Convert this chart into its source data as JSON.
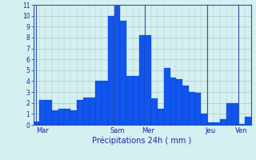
{
  "values": [
    0.3,
    2.3,
    2.3,
    1.3,
    1.5,
    1.5,
    1.3,
    2.3,
    2.5,
    2.5,
    4.0,
    4.0,
    10.0,
    11.0,
    9.5,
    4.5,
    4.5,
    8.2,
    8.2,
    2.4,
    1.5,
    5.2,
    4.3,
    4.2,
    3.6,
    3.0,
    2.9,
    1.0,
    0.2,
    0.2,
    0.5,
    2.0,
    2.0,
    0.1,
    0.7
  ],
  "bar_color": "#1155ee",
  "bar_edge_color": "#0033bb",
  "background_color": "#d4f0f0",
  "grid_color": "#b0c8c8",
  "text_color": "#2222aa",
  "xlabel": "Précipitations 24h ( mm )",
  "ylim": [
    0,
    11
  ],
  "yticks": [
    0,
    1,
    2,
    3,
    4,
    5,
    6,
    7,
    8,
    9,
    10,
    11
  ],
  "day_labels": [
    "Mar",
    "Sam",
    "Mer",
    "Jeu",
    "Ven"
  ],
  "day_tick_positions": [
    1,
    13,
    18,
    28,
    33
  ],
  "vline_positions": [
    0,
    12.5,
    17.5,
    27.5,
    32.5
  ],
  "n_bars": 35
}
